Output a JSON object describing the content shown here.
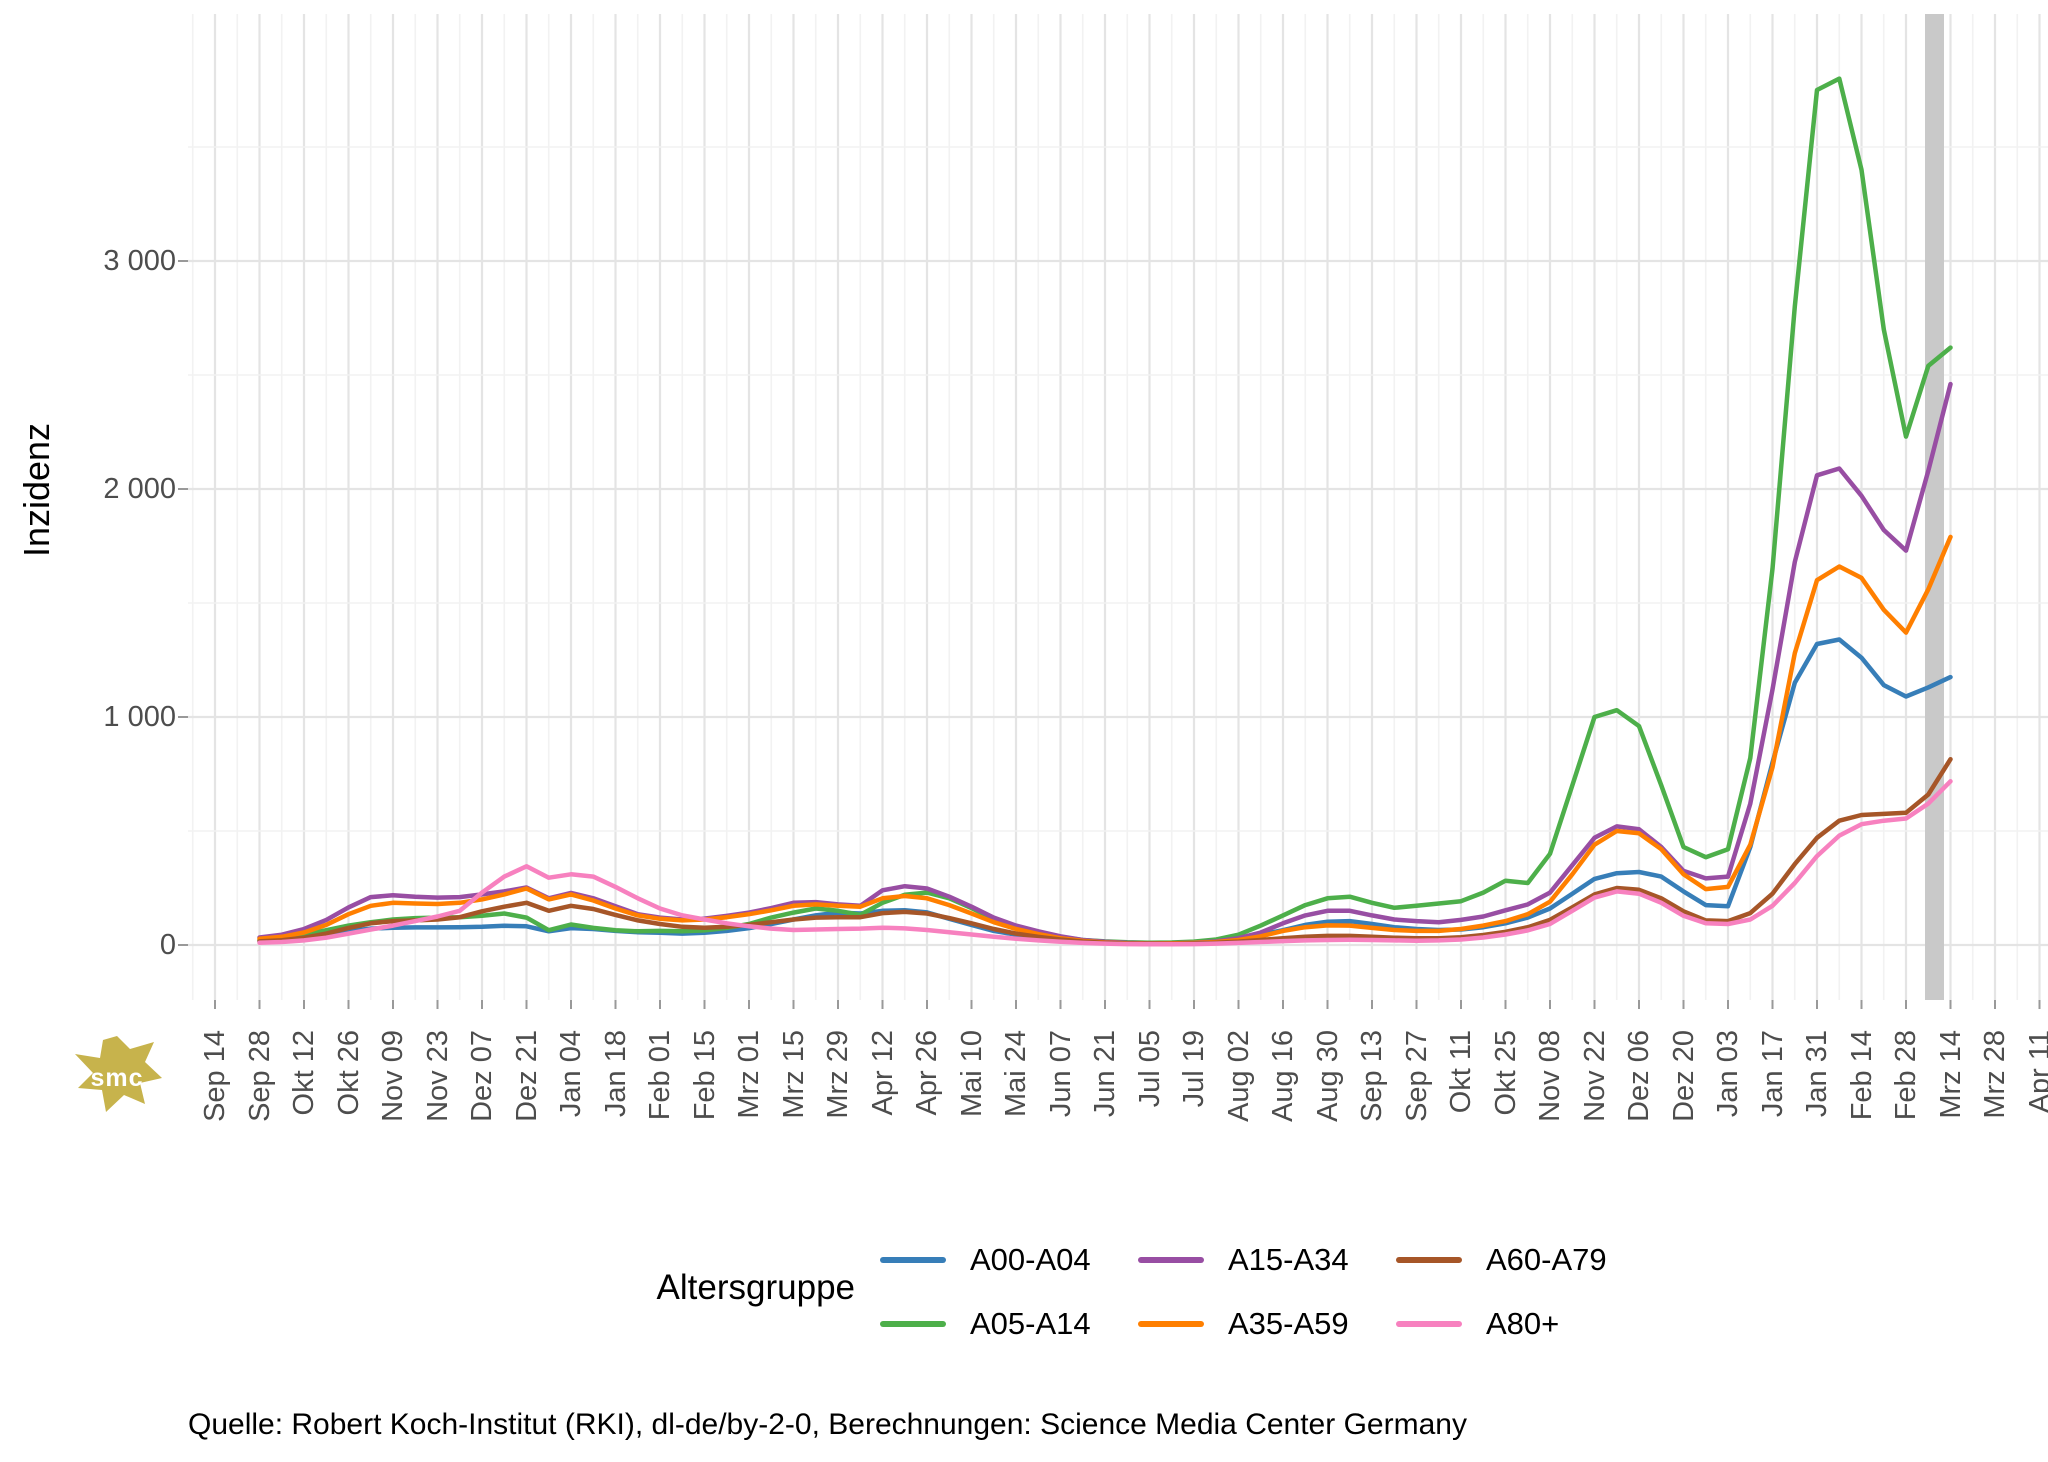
{
  "y_axis": {
    "title": "Inzidenz",
    "tick_labels": [
      "3 000",
      "2 000",
      "1 000",
      "0"
    ],
    "tick_values": [
      3000,
      2000,
      1000,
      0
    ]
  },
  "x_axis": {
    "tick_labels": [
      "Sep 14",
      "Sep 28",
      "Okt 12",
      "Okt 26",
      "Nov 09",
      "Nov 23",
      "Dez 07",
      "Dez 21",
      "Jan 04",
      "Jan 18",
      "Feb 01",
      "Feb 15",
      "Mrz 01",
      "Mrz 15",
      "Mrz 29",
      "Apr 12",
      "Apr 26",
      "Mai 10",
      "Mai 24",
      "Jun 07",
      "Jun 21",
      "Jul 05",
      "Jul 19",
      "Aug 02",
      "Aug 16",
      "Aug 30",
      "Sep 13",
      "Sep 27",
      "Okt 11",
      "Okt 25",
      "Nov 08",
      "Nov 22",
      "Dez 06",
      "Dez 20",
      "Jan 03",
      "Jan 17",
      "Jan 31",
      "Feb 14",
      "Feb 28",
      "Mrz 14",
      "Mrz 28",
      "Apr 11"
    ]
  },
  "legend": {
    "title": "Altersgruppe",
    "items": [
      {
        "label": "A00-A04",
        "color": "#377EB8"
      },
      {
        "label": "A05-A14",
        "color": "#4DAF4A"
      },
      {
        "label": "A15-A34",
        "color": "#984EA3"
      },
      {
        "label": "A35-A59",
        "color": "#FF7F00"
      },
      {
        "label": "A60-A79",
        "color": "#A65628"
      },
      {
        "label": "A80+",
        "color": "#F781BF"
      }
    ]
  },
  "source_note": "Quelle: Robert Koch-Institut (RKI), dl-de/by-2-0, Berechnungen: Science Media Center Germany",
  "logo": {
    "text": "smc",
    "color": "#c7b34c"
  },
  "colors": {
    "grid_major": "#e4e4e4",
    "grid_minor": "#f2f2f2",
    "tick_mark": "#999999",
    "recent_data_band": "#c9c9c9",
    "axis_text": "#4d4d4d"
  },
  "chart_data": {
    "type": "line",
    "title": "",
    "xlabel": "",
    "ylabel": "Inzidenz",
    "legend_title": "Altersgruppe",
    "legend_position": "bottom",
    "grid": true,
    "ylim": [
      0,
      4100
    ],
    "y_major_gridlines": [
      0,
      1000,
      2000,
      3000
    ],
    "y_minor_gridlines": [
      500,
      1500,
      2500,
      3500
    ],
    "x_tick_labels": [
      "Sep 14",
      "Sep 28",
      "Okt 12",
      "Okt 26",
      "Nov 09",
      "Nov 23",
      "Dez 07",
      "Dez 21",
      "Jan 04",
      "Jan 18",
      "Feb 01",
      "Feb 15",
      "Mrz 01",
      "Mrz 15",
      "Mrz 29",
      "Apr 12",
      "Apr 26",
      "Mai 10",
      "Mai 24",
      "Jun 07",
      "Jun 21",
      "Jul 05",
      "Jul 19",
      "Aug 02",
      "Aug 16",
      "Aug 30",
      "Sep 13",
      "Sep 27",
      "Okt 11",
      "Okt 25",
      "Nov 08",
      "Nov 22",
      "Dez 06",
      "Dez 20",
      "Jan 03",
      "Jan 17",
      "Jan 31",
      "Feb 14",
      "Feb 28",
      "Mrz 14",
      "Mrz 28",
      "Apr 11"
    ],
    "x": [
      "2020-09-28",
      "2020-10-05",
      "2020-10-12",
      "2020-10-19",
      "2020-10-26",
      "2020-11-02",
      "2020-11-09",
      "2020-11-16",
      "2020-11-23",
      "2020-11-30",
      "2020-12-07",
      "2020-12-14",
      "2020-12-21",
      "2020-12-28",
      "2021-01-04",
      "2021-01-11",
      "2021-01-18",
      "2021-01-25",
      "2021-02-01",
      "2021-02-08",
      "2021-02-15",
      "2021-02-22",
      "2021-03-01",
      "2021-03-08",
      "2021-03-15",
      "2021-03-22",
      "2021-03-29",
      "2021-04-05",
      "2021-04-12",
      "2021-04-19",
      "2021-04-26",
      "2021-05-03",
      "2021-05-10",
      "2021-05-17",
      "2021-05-24",
      "2021-05-31",
      "2021-06-07",
      "2021-06-14",
      "2021-06-21",
      "2021-06-28",
      "2021-07-05",
      "2021-07-12",
      "2021-07-19",
      "2021-07-26",
      "2021-08-02",
      "2021-08-09",
      "2021-08-16",
      "2021-08-23",
      "2021-08-30",
      "2021-09-06",
      "2021-09-13",
      "2021-09-20",
      "2021-09-27",
      "2021-10-04",
      "2021-10-11",
      "2021-10-18",
      "2021-10-25",
      "2021-11-01",
      "2021-11-08",
      "2021-11-15",
      "2021-11-22",
      "2021-11-29",
      "2021-12-06",
      "2021-12-13",
      "2021-12-20",
      "2021-12-27",
      "2022-01-03",
      "2022-01-10",
      "2022-01-17",
      "2022-01-24",
      "2022-01-31",
      "2022-02-07",
      "2022-02-14",
      "2022-02-21",
      "2022-02-28",
      "2022-03-07",
      "2022-03-14"
    ],
    "series": [
      {
        "name": "A00-A04",
        "color": "#377EB8",
        "values": [
          18,
          25,
          35,
          48,
          62,
          72,
          76,
          77,
          77,
          78,
          80,
          84,
          82,
          60,
          74,
          70,
          62,
          56,
          54,
          50,
          54,
          62,
          74,
          92,
          112,
          130,
          142,
          138,
          150,
          152,
          143,
          115,
          88,
          62,
          45,
          32,
          20,
          14,
          11,
          9,
          8,
          9,
          12,
          18,
          28,
          45,
          65,
          88,
          102,
          105,
          92,
          78,
          70,
          66,
          68,
          78,
          95,
          120,
          160,
          225,
          290,
          315,
          320,
          300,
          235,
          175,
          170,
          430,
          800,
          1150,
          1320,
          1340,
          1260,
          1140,
          1090,
          1130,
          1175
        ]
      },
      {
        "name": "A05-A14",
        "color": "#4DAF4A",
        "values": [
          22,
          30,
          45,
          65,
          85,
          100,
          112,
          118,
          120,
          122,
          128,
          138,
          120,
          65,
          90,
          75,
          65,
          60,
          62,
          60,
          64,
          75,
          92,
          120,
          142,
          160,
          150,
          132,
          185,
          220,
          230,
          205,
          162,
          115,
          80,
          55,
          35,
          22,
          16,
          12,
          10,
          11,
          15,
          24,
          45,
          85,
          130,
          175,
          205,
          212,
          185,
          163,
          172,
          182,
          192,
          230,
          282,
          272,
          400,
          700,
          1000,
          1030,
          960,
          700,
          430,
          385,
          420,
          820,
          1650,
          2800,
          3750,
          3800,
          3400,
          2700,
          2230,
          2540,
          2620
        ]
      },
      {
        "name": "A15-A34",
        "color": "#984EA3",
        "values": [
          33,
          45,
          70,
          110,
          165,
          210,
          218,
          212,
          208,
          210,
          222,
          235,
          252,
          205,
          228,
          205,
          170,
          135,
          120,
          112,
          116,
          128,
          142,
          162,
          185,
          188,
          178,
          172,
          240,
          258,
          248,
          212,
          168,
          120,
          85,
          60,
          38,
          22,
          14,
          9,
          7,
          8,
          10,
          16,
          30,
          55,
          95,
          130,
          150,
          150,
          130,
          112,
          105,
          100,
          110,
          125,
          152,
          178,
          230,
          350,
          470,
          520,
          508,
          430,
          325,
          292,
          300,
          620,
          1120,
          1680,
          2060,
          2090,
          1970,
          1820,
          1730,
          2080,
          2460
        ]
      },
      {
        "name": "A35-A59",
        "color": "#FF7F00",
        "values": [
          27,
          36,
          55,
          88,
          135,
          172,
          185,
          182,
          180,
          185,
          200,
          222,
          248,
          200,
          222,
          195,
          160,
          130,
          115,
          108,
          112,
          122,
          135,
          152,
          172,
          178,
          172,
          168,
          205,
          215,
          205,
          175,
          138,
          100,
          70,
          48,
          30,
          18,
          11,
          7,
          6,
          7,
          9,
          13,
          22,
          38,
          62,
          78,
          86,
          85,
          75,
          66,
          62,
          62,
          70,
          85,
          105,
          135,
          190,
          310,
          440,
          500,
          490,
          420,
          310,
          245,
          255,
          440,
          780,
          1280,
          1600,
          1660,
          1610,
          1470,
          1370,
          1560,
          1790
        ]
      },
      {
        "name": "A60-A79",
        "color": "#A65628",
        "values": [
          16,
          21,
          32,
          50,
          75,
          95,
          105,
          108,
          112,
          122,
          148,
          168,
          185,
          150,
          172,
          158,
          132,
          108,
          92,
          80,
          76,
          80,
          88,
          100,
          112,
          120,
          122,
          122,
          140,
          145,
          138,
          118,
          95,
          70,
          50,
          36,
          24,
          15,
          9,
          6,
          5,
          5,
          7,
          10,
          15,
          22,
          30,
          36,
          40,
          40,
          36,
          32,
          30,
          30,
          34,
          44,
          58,
          78,
          110,
          165,
          222,
          250,
          242,
          205,
          148,
          108,
          105,
          140,
          225,
          355,
          470,
          545,
          570,
          575,
          580,
          660,
          815
        ]
      },
      {
        "name": "A80+",
        "color": "#F781BF",
        "values": [
          10,
          13,
          20,
          32,
          50,
          68,
          85,
          105,
          125,
          150,
          230,
          300,
          345,
          295,
          310,
          300,
          255,
          205,
          160,
          130,
          112,
          95,
          82,
          72,
          66,
          68,
          70,
          72,
          76,
          73,
          66,
          56,
          46,
          36,
          27,
          20,
          14,
          9,
          6,
          4,
          3,
          3,
          4,
          6,
          9,
          13,
          17,
          20,
          22,
          23,
          22,
          20,
          19,
          20,
          24,
          33,
          46,
          64,
          92,
          150,
          208,
          235,
          225,
          185,
          128,
          95,
          92,
          112,
          172,
          272,
          390,
          480,
          530,
          545,
          555,
          620,
          718
        ]
      }
    ],
    "vertical_band": {
      "from": "2022-03-09",
      "to": "2022-03-14",
      "color": "#c9c9c9"
    }
  }
}
